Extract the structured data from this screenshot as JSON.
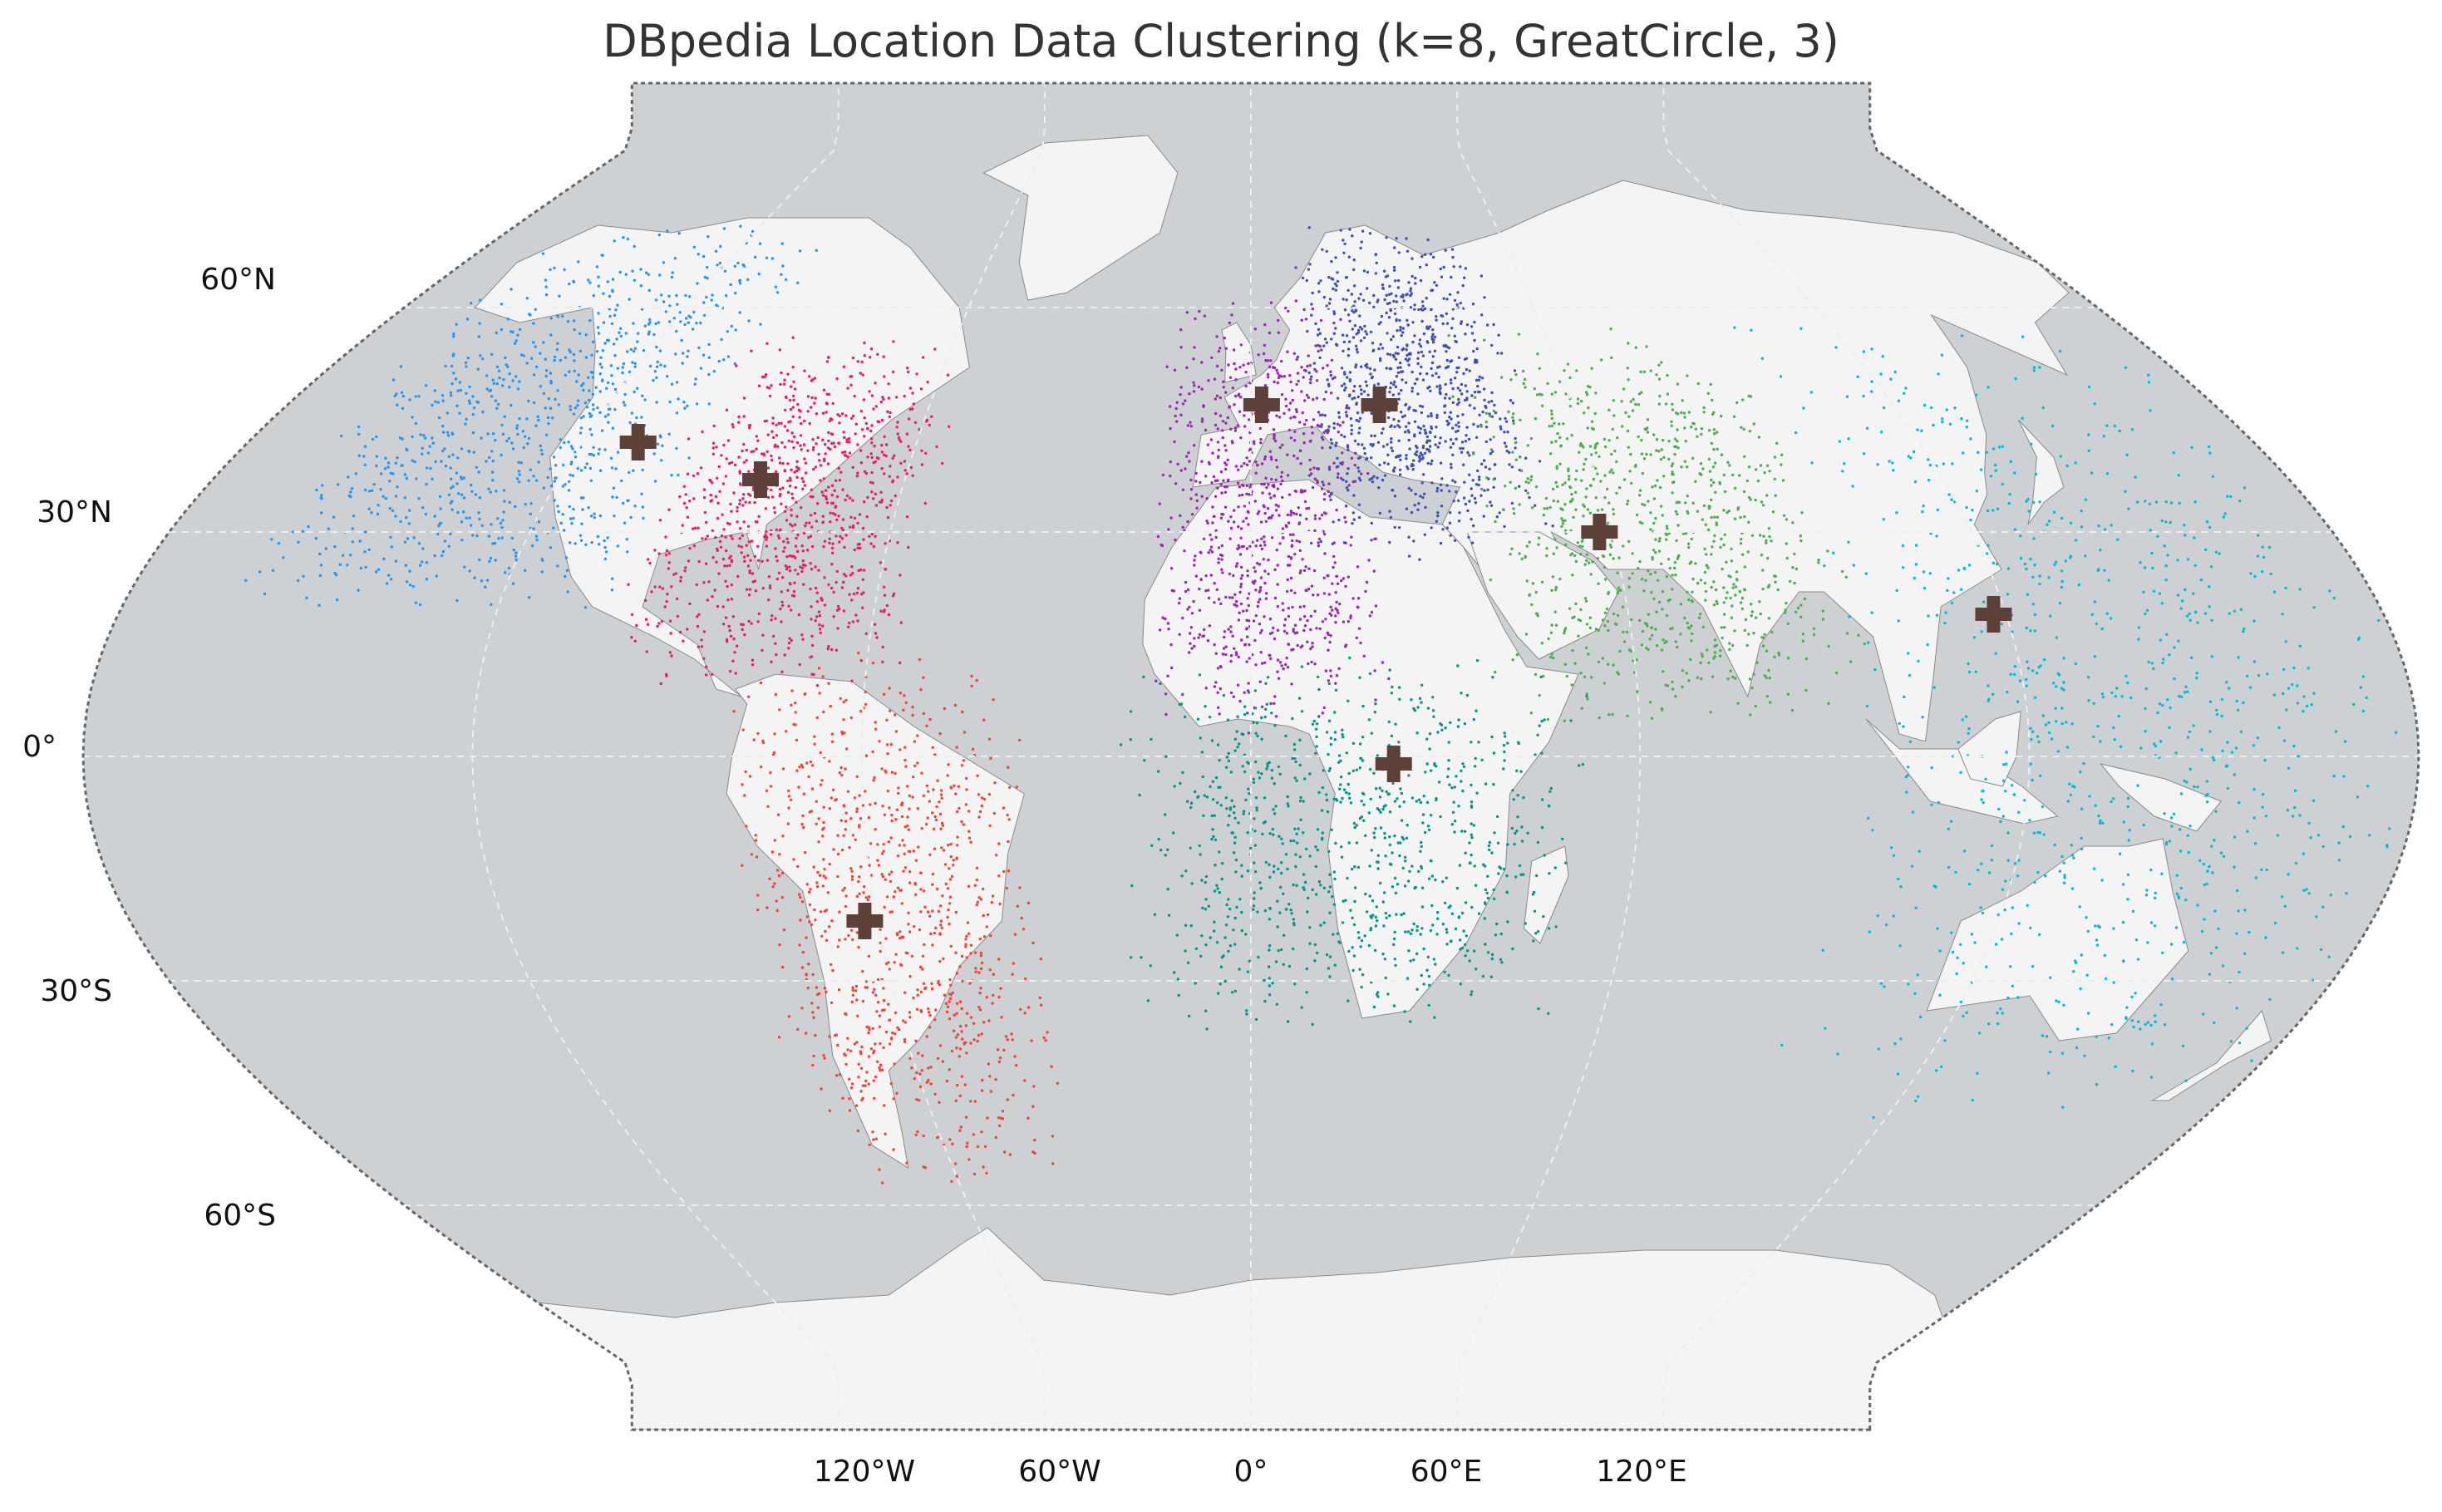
{
  "title": "DBpedia Location Data Clustering (k=8, GreatCircle, 3)",
  "colors": {
    "ocean": "#cdd1d4",
    "land": "#f4f4f4",
    "border": "#8a8a8a",
    "grid": "#eeeeee",
    "frame": "#666666",
    "centroid": "#5d4037"
  },
  "lat_labels": [
    "60°N",
    "30°N",
    "0°",
    "30°S",
    "60°S"
  ],
  "lon_labels": [
    "120°W",
    "60°W",
    "0°",
    "60°E",
    "120°E"
  ],
  "clusters": [
    {
      "id": 1,
      "color": "#2196f3",
      "centroid_lon": -110,
      "centroid_lat": 42
    },
    {
      "id": 2,
      "color": "#e91e63",
      "centroid_lon": -85,
      "centroid_lat": 37
    },
    {
      "id": 3,
      "color": "#f44336",
      "centroid_lon": -62,
      "centroid_lat": -22
    },
    {
      "id": 4,
      "color": "#9c27b0",
      "centroid_lon": 2,
      "centroid_lat": 47
    },
    {
      "id": 5,
      "color": "#3f51b5",
      "centroid_lon": 24,
      "centroid_lat": 47
    },
    {
      "id": 6,
      "color": "#4caf50",
      "centroid_lon": 58,
      "centroid_lat": 30
    },
    {
      "id": 7,
      "color": "#009688",
      "centroid_lon": 22,
      "centroid_lat": -1
    },
    {
      "id": 8,
      "color": "#00bcd4",
      "centroid_lon": 118,
      "centroid_lat": 19
    }
  ]
}
